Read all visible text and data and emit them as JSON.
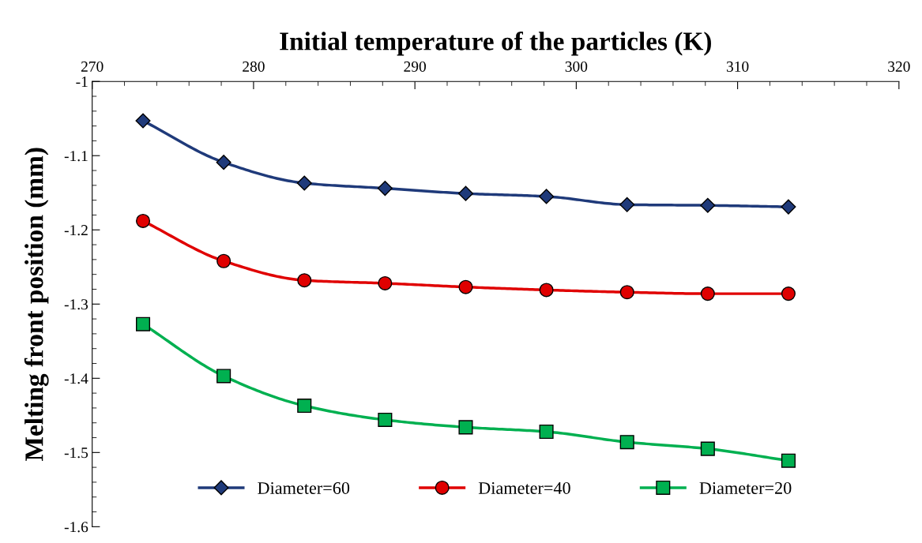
{
  "chart_data": {
    "type": "line",
    "xlabel": "Initial temperature of the particles (K)",
    "ylabel": "Melting front position (mm)",
    "x": [
      273.15,
      278.15,
      283.15,
      288.15,
      293.15,
      298.15,
      303.15,
      308.15,
      313.15
    ],
    "series": [
      {
        "name": "Diameter=60",
        "color": "#1f3a7a",
        "marker": "diamond",
        "values": [
          -1.053,
          -1.109,
          -1.137,
          -1.144,
          -1.151,
          -1.155,
          -1.166,
          -1.167,
          -1.169
        ]
      },
      {
        "name": "Diameter=40",
        "color": "#e00000",
        "marker": "circle",
        "values": [
          -1.188,
          -1.242,
          -1.268,
          -1.272,
          -1.277,
          -1.281,
          -1.284,
          -1.286,
          -1.286
        ]
      },
      {
        "name": "Diameter=20",
        "color": "#00b050",
        "marker": "square",
        "values": [
          -1.327,
          -1.397,
          -1.437,
          -1.456,
          -1.466,
          -1.472,
          -1.486,
          -1.495,
          -1.511
        ]
      }
    ],
    "xlim": [
      270,
      320
    ],
    "xticks": [
      270,
      280,
      290,
      300,
      310,
      320
    ],
    "ylim": [
      -1.6,
      -1
    ],
    "yticks": [
      -1.6,
      -1.5,
      -1.4,
      -1.3,
      -1.2,
      -1.1,
      -1
    ],
    "grid": false,
    "legend": "bottom",
    "line_style": "solid"
  }
}
